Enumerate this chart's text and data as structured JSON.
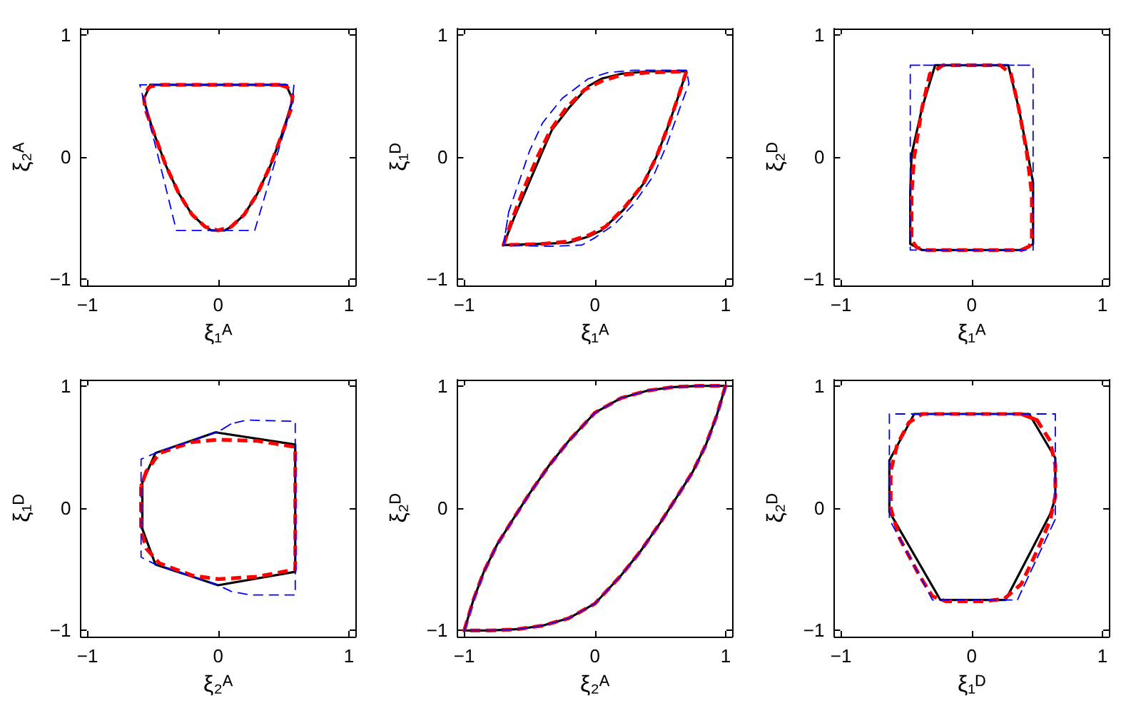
{
  "chart_data": [
    {
      "type": "line",
      "xlabel": "ξ₁ᴬ",
      "ylabel": "ξ₂ᴬ",
      "xlim": [
        -1.05,
        1.05
      ],
      "ylim": [
        -1.05,
        1.05
      ],
      "xticks": [
        -1,
        0,
        1
      ],
      "yticks": [
        -1,
        0,
        1
      ],
      "marker": "none",
      "series": [
        {
          "color": "#000000",
          "line_style": "solid",
          "x": [
            0.52,
            0.57,
            0.5,
            0.4,
            0.3,
            0.2,
            0.1,
            0.05,
            -0.05,
            -0.1,
            -0.2,
            -0.3,
            -0.4,
            -0.5,
            -0.57,
            -0.52,
            0.52,
            0.57
          ],
          "values": [
            0.59,
            0.47,
            0.22,
            -0.07,
            -0.3,
            -0.47,
            -0.57,
            -0.6,
            -0.6,
            -0.57,
            -0.47,
            -0.3,
            -0.07,
            0.22,
            0.47,
            0.59,
            0.59,
            0.47
          ]
        },
        {
          "color": "#ff0000",
          "line_style": "dashed",
          "x": [
            0.47,
            0.53,
            0.57,
            0.56,
            0.5,
            0.4,
            0.3,
            0.2,
            0.1,
            0,
            -0.1,
            -0.2,
            -0.3,
            -0.4,
            -0.5,
            -0.56,
            -0.57,
            -0.53,
            -0.47,
            0.47,
            0.53
          ],
          "values": [
            0.59,
            0.57,
            0.5,
            0.4,
            0.22,
            -0.07,
            -0.3,
            -0.47,
            -0.57,
            -0.6,
            -0.57,
            -0.47,
            -0.3,
            -0.07,
            0.22,
            0.4,
            0.5,
            0.57,
            0.59,
            0.59,
            0.57
          ]
        },
        {
          "color": "#0000ff",
          "line_style": "dashed",
          "x": [
            0.58,
            0.57,
            0.53,
            0.46,
            0.28,
            -0.32,
            -0.47,
            -0.53,
            -0.57,
            -0.6,
            0.58,
            0.57
          ],
          "values": [
            0.59,
            0.47,
            0.3,
            0.05,
            -0.6,
            -0.6,
            0.05,
            0.3,
            0.47,
            0.59,
            0.59,
            0.47
          ]
        }
      ]
    },
    {
      "type": "line",
      "xlabel": "ξ₁ᴬ",
      "ylabel": "ξ₁ᴰ",
      "xlim": [
        -1.05,
        1.05
      ],
      "ylim": [
        -1.05,
        1.05
      ],
      "xticks": [
        -1,
        0,
        1
      ],
      "yticks": [
        -1,
        0,
        1
      ],
      "marker": "none",
      "series": [
        {
          "color": "#000000",
          "line_style": "solid",
          "x": [
            -0.7,
            -0.62,
            -0.52,
            -0.42,
            -0.33,
            -0.2,
            -0.05,
            0.05,
            0.2,
            0.4,
            0.7,
            0.64,
            0.56,
            0.47,
            0.37,
            0.22,
            0.05,
            -0.05,
            -0.2,
            -0.4,
            -0.7,
            -0.62
          ],
          "values": [
            -0.72,
            -0.5,
            -0.25,
            0,
            0.22,
            0.4,
            0.58,
            0.64,
            0.68,
            0.7,
            0.7,
            0.5,
            0.25,
            0,
            -0.22,
            -0.43,
            -0.6,
            -0.65,
            -0.7,
            -0.71,
            -0.72,
            -0.5
          ]
        },
        {
          "color": "#ff0000",
          "line_style": "dashed",
          "x": [
            -0.7,
            -0.63,
            -0.54,
            -0.44,
            -0.34,
            -0.22,
            -0.08,
            0.05,
            0.2,
            0.4,
            0.7,
            0.64,
            0.56,
            0.47,
            0.37,
            0.22,
            0.08,
            -0.05,
            -0.2,
            -0.4,
            -0.7,
            -0.63
          ],
          "values": [
            -0.72,
            -0.5,
            -0.25,
            0,
            0.22,
            0.4,
            0.55,
            0.62,
            0.67,
            0.69,
            0.7,
            0.5,
            0.25,
            0,
            -0.22,
            -0.42,
            -0.57,
            -0.64,
            -0.69,
            -0.71,
            -0.72,
            -0.5
          ]
        },
        {
          "color": "#0000ff",
          "line_style": "dashed",
          "x": [
            -0.7,
            -0.66,
            -0.58,
            -0.5,
            -0.4,
            -0.25,
            -0.05,
            0.1,
            0.3,
            0.7,
            0.72,
            0.65,
            0.55,
            0.45,
            0.3,
            0.15,
            0,
            -0.1,
            -0.35,
            -0.7,
            -0.66
          ],
          "values": [
            -0.72,
            -0.45,
            -0.2,
            0.05,
            0.28,
            0.48,
            0.64,
            0.69,
            0.71,
            0.71,
            0.6,
            0.4,
            0.1,
            -0.15,
            -0.38,
            -0.55,
            -0.66,
            -0.72,
            -0.73,
            -0.72,
            -0.45
          ]
        }
      ]
    },
    {
      "type": "line",
      "xlabel": "ξ₁ᴬ",
      "ylabel": "ξ₂ᴰ",
      "xlim": [
        -1.05,
        1.05
      ],
      "ylim": [
        -1.05,
        1.05
      ],
      "xticks": [
        -1,
        0,
        1
      ],
      "yticks": [
        -1,
        0,
        1
      ],
      "marker": "none",
      "series": [
        {
          "color": "#000000",
          "line_style": "solid",
          "x": [
            0.47,
            0.4,
            -0.38,
            -0.47,
            -0.47,
            -0.46,
            -0.38,
            -0.28,
            0.28,
            0.36,
            0.43,
            0.47,
            0.47,
            0.4
          ],
          "values": [
            -0.71,
            -0.76,
            -0.76,
            -0.71,
            -0.29,
            0.02,
            0.4,
            0.75,
            0.75,
            0.4,
            0.02,
            -0.21,
            -0.71,
            -0.76
          ]
        },
        {
          "color": "#ff0000",
          "line_style": "dashed",
          "x": [
            0.44,
            0.38,
            -0.35,
            -0.42,
            -0.46,
            -0.46,
            -0.44,
            -0.38,
            -0.32,
            -0.22,
            0.22,
            0.3,
            0.36,
            0.42,
            0.46,
            0.46,
            0.44,
            0.38
          ],
          "values": [
            -0.73,
            -0.76,
            -0.76,
            -0.74,
            -0.68,
            -0.3,
            0,
            0.4,
            0.68,
            0.75,
            0.75,
            0.68,
            0.4,
            0.05,
            -0.3,
            -0.68,
            -0.73,
            -0.76
          ]
        },
        {
          "color": "#0000ff",
          "line_style": "dashed",
          "x": [
            -0.47,
            0.47,
            0.47,
            -0.47,
            -0.47,
            0.47
          ],
          "values": [
            0.75,
            0.75,
            -0.76,
            -0.76,
            0.75,
            0.75
          ]
        }
      ]
    },
    {
      "type": "line",
      "xlabel": "ξ₂ᴬ",
      "ylabel": "ξ₁ᴰ",
      "xlim": [
        -1.05,
        1.05
      ],
      "ylim": [
        -1.05,
        1.05
      ],
      "xticks": [
        -1,
        0,
        1
      ],
      "yticks": [
        -1,
        0,
        1
      ],
      "marker": "none",
      "series": [
        {
          "color": "#000000",
          "line_style": "solid",
          "x": [
            -0.48,
            -0.58,
            -0.58,
            -0.48,
            0,
            0.59,
            0.59,
            -0.02,
            -0.48,
            -0.58
          ],
          "values": [
            0.45,
            0.21,
            -0.17,
            -0.46,
            -0.63,
            -0.52,
            0.52,
            0.62,
            0.45,
            0.21
          ]
        },
        {
          "color": "#ff0000",
          "line_style": "dashed",
          "x": [
            -0.55,
            -0.59,
            -0.59,
            -0.55,
            -0.45,
            -0.2,
            0,
            0.3,
            0.59,
            0.59,
            0.3,
            0,
            -0.2,
            -0.45,
            -0.55,
            -0.59
          ],
          "values": [
            0.3,
            0.18,
            -0.18,
            -0.33,
            -0.45,
            -0.55,
            -0.58,
            -0.56,
            -0.5,
            0.5,
            0.55,
            0.56,
            0.54,
            0.45,
            0.3,
            0.18
          ]
        },
        {
          "color": "#0000ff",
          "line_style": "dashed",
          "x": [
            0.1,
            0.01,
            -0.48,
            -0.59,
            -0.59,
            -0.48,
            0,
            0.1,
            0.25,
            0.59,
            0.59,
            0.22,
            0.1,
            0.01
          ],
          "values": [
            0.69,
            0.63,
            0.45,
            0.4,
            -0.4,
            -0.46,
            -0.63,
            -0.68,
            -0.71,
            -0.71,
            0.71,
            0.72,
            0.69,
            0.63
          ]
        }
      ]
    },
    {
      "type": "line",
      "xlabel": "ξ₂ᴬ",
      "ylabel": "ξ₂ᴰ",
      "xlim": [
        -1.05,
        1.05
      ],
      "ylim": [
        -1.05,
        1.05
      ],
      "xticks": [
        -1,
        0,
        1
      ],
      "yticks": [
        -1,
        0,
        1
      ],
      "marker": "none",
      "series": [
        {
          "color": "#000000",
          "line_style": "solid",
          "x": [
            -1,
            -0.93,
            -0.85,
            -0.75,
            -0.62,
            -0.5,
            -0.35,
            -0.2,
            0,
            0.2,
            0.4,
            0.6,
            0.8,
            1,
            0.93,
            0.85,
            0.75,
            0.62,
            0.5,
            0.35,
            0.2,
            0,
            -0.2,
            -0.4,
            -0.6,
            -0.8,
            -1,
            -0.93
          ],
          "values": [
            -1,
            -0.75,
            -0.52,
            -0.3,
            -0.08,
            0.12,
            0.35,
            0.55,
            0.78,
            0.9,
            0.96,
            0.99,
            1,
            1,
            0.75,
            0.52,
            0.3,
            0.08,
            -0.12,
            -0.35,
            -0.55,
            -0.78,
            -0.9,
            -0.96,
            -0.99,
            -1,
            -1,
            -0.75
          ]
        },
        {
          "color": "#ff0000",
          "line_style": "dashed",
          "x": [
            -1,
            -0.93,
            -0.85,
            -0.75,
            -0.62,
            -0.5,
            -0.35,
            -0.2,
            0,
            0.2,
            0.4,
            0.6,
            0.8,
            1,
            0.93,
            0.85,
            0.75,
            0.62,
            0.5,
            0.35,
            0.2,
            0,
            -0.2,
            -0.4,
            -0.6,
            -0.8,
            -1,
            -0.93
          ],
          "values": [
            -1,
            -0.75,
            -0.52,
            -0.3,
            -0.08,
            0.12,
            0.35,
            0.55,
            0.78,
            0.9,
            0.96,
            0.99,
            1,
            1,
            0.75,
            0.52,
            0.3,
            0.08,
            -0.12,
            -0.35,
            -0.55,
            -0.78,
            -0.9,
            -0.96,
            -0.99,
            -1,
            -1,
            -0.75
          ]
        },
        {
          "color": "#0000ff",
          "line_style": "dashed",
          "x": [
            -1,
            -0.93,
            -0.85,
            -0.75,
            -0.62,
            -0.5,
            -0.35,
            -0.2,
            0,
            0.2,
            0.4,
            0.6,
            0.8,
            1,
            0.93,
            0.85,
            0.75,
            0.62,
            0.5,
            0.35,
            0.2,
            0,
            -0.2,
            -0.4,
            -0.6,
            -0.8,
            -1,
            -0.93
          ],
          "values": [
            -1,
            -0.75,
            -0.52,
            -0.3,
            -0.08,
            0.12,
            0.35,
            0.55,
            0.78,
            0.9,
            0.96,
            0.99,
            1,
            1,
            0.75,
            0.52,
            0.3,
            0.08,
            -0.12,
            -0.35,
            -0.55,
            -0.78,
            -0.9,
            -0.96,
            -0.99,
            -1,
            -1,
            -0.75
          ]
        }
      ]
    },
    {
      "type": "line",
      "xlabel": "ξ₁ᴰ",
      "ylabel": "ξ₂ᴰ",
      "xlim": [
        -1.05,
        1.05
      ],
      "ylim": [
        -1.05,
        1.05
      ],
      "xticks": [
        -1,
        0,
        1
      ],
      "yticks": [
        -1,
        0,
        1
      ],
      "marker": "none",
      "series": [
        {
          "color": "#000000",
          "line_style": "solid",
          "x": [
            0.64,
            0.6,
            0.26,
            -0.24,
            -0.63,
            -0.63,
            -0.44,
            0.44,
            0.64,
            0.64,
            0.6
          ],
          "values": [
            0.08,
            -0.05,
            -0.75,
            -0.75,
            -0.03,
            0.39,
            0.77,
            0.77,
            0.41,
            0.08,
            -0.05
          ]
        },
        {
          "color": "#ff0000",
          "line_style": "dashed",
          "x": [
            0.38,
            0.5,
            0.6,
            0.64,
            0.64,
            0.6,
            0.5,
            0.38,
            0.25,
            0.1,
            -0.2,
            -0.3,
            -0.4,
            -0.55,
            -0.62,
            -0.62,
            -0.57,
            -0.48,
            -0.38,
            0.38,
            0.5
          ],
          "values": [
            0.77,
            0.72,
            0.55,
            0.35,
            0.1,
            -0.1,
            -0.35,
            -0.62,
            -0.74,
            -0.76,
            -0.76,
            -0.72,
            -0.55,
            -0.25,
            0,
            0.3,
            0.52,
            0.7,
            0.77,
            0.77,
            0.72
          ]
        },
        {
          "color": "#0000ff",
          "line_style": "dashed",
          "x": [
            0.64,
            0.35,
            -0.3,
            -0.63,
            -0.63,
            0.64,
            0.64,
            0.35
          ],
          "values": [
            -0.09,
            -0.75,
            -0.75,
            -0.09,
            0.77,
            0.77,
            -0.09,
            -0.75
          ]
        }
      ]
    }
  ]
}
